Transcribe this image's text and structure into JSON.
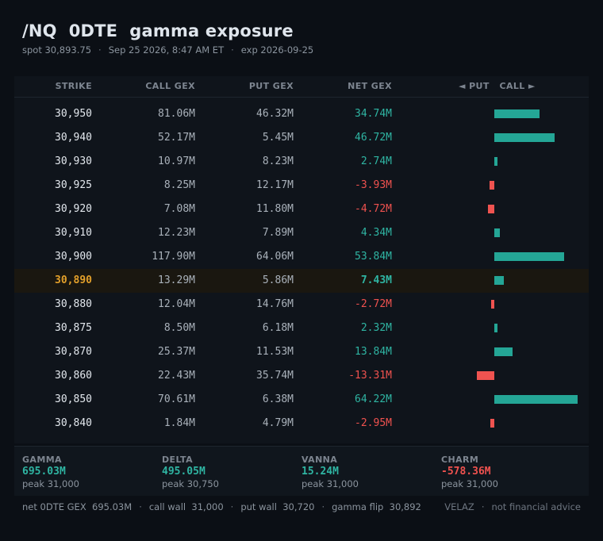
{
  "header": {
    "title": "/NQ  0DTE  gamma exposure",
    "spot": "spot 30,893.75",
    "timestamp": "Sep 25 2026, 8:47 AM ET",
    "expiry": "exp 2026-09-25",
    "separator": "·"
  },
  "table": {
    "columns": {
      "strike": "STRIKE",
      "call_gex": "CALL GEX",
      "put_gex": "PUT GEX",
      "net_gex": "NET GEX",
      "direction": "◄ PUT   CALL ►"
    },
    "bar_scale_max": 64.22,
    "highlight_strike": "30,890",
    "rows": [
      {
        "strike": "30,950",
        "call": "81.06M",
        "put": "46.32M",
        "net": "34.74M",
        "net_value": 34.74
      },
      {
        "strike": "30,940",
        "call": "52.17M",
        "put": "5.45M",
        "net": "46.72M",
        "net_value": 46.72
      },
      {
        "strike": "30,930",
        "call": "10.97M",
        "put": "8.23M",
        "net": "2.74M",
        "net_value": 2.74
      },
      {
        "strike": "30,925",
        "call": "8.25M",
        "put": "12.17M",
        "net": "-3.93M",
        "net_value": -3.93
      },
      {
        "strike": "30,920",
        "call": "7.08M",
        "put": "11.80M",
        "net": "-4.72M",
        "net_value": -4.72
      },
      {
        "strike": "30,910",
        "call": "12.23M",
        "put": "7.89M",
        "net": "4.34M",
        "net_value": 4.34
      },
      {
        "strike": "30,900",
        "call": "117.90M",
        "put": "64.06M",
        "net": "53.84M",
        "net_value": 53.84
      },
      {
        "strike": "30,890",
        "call": "13.29M",
        "put": "5.86M",
        "net": "7.43M",
        "net_value": 7.43
      },
      {
        "strike": "30,880",
        "call": "12.04M",
        "put": "14.76M",
        "net": "-2.72M",
        "net_value": -2.72
      },
      {
        "strike": "30,875",
        "call": "8.50M",
        "put": "6.18M",
        "net": "2.32M",
        "net_value": 2.32
      },
      {
        "strike": "30,870",
        "call": "25.37M",
        "put": "11.53M",
        "net": "13.84M",
        "net_value": 13.84
      },
      {
        "strike": "30,860",
        "call": "22.43M",
        "put": "35.74M",
        "net": "-13.31M",
        "net_value": -13.31
      },
      {
        "strike": "30,850",
        "call": "70.61M",
        "put": "6.38M",
        "net": "64.22M",
        "net_value": 64.22
      },
      {
        "strike": "30,840",
        "call": "1.84M",
        "put": "4.79M",
        "net": "-2.95M",
        "net_value": -2.95
      }
    ]
  },
  "stats": [
    {
      "key": "gamma",
      "label": "GAMMA",
      "value": "695.03M",
      "peak": "peak 31,000",
      "color": "#2fb5a3"
    },
    {
      "key": "delta",
      "label": "DELTA",
      "value": "495.05M",
      "peak": "peak 30,750",
      "color": "#2fb5a3"
    },
    {
      "key": "vanna",
      "label": "VANNA",
      "value": "15.24M",
      "peak": "peak 31,000",
      "color": "#2fb5a3"
    },
    {
      "key": "charm",
      "label": "CHARM",
      "value": "-578.36M",
      "peak": "peak 31,000",
      "color": "#f0524f"
    }
  ],
  "footer": {
    "net_gex": "net 0DTE GEX  695.03M",
    "call_wall": "call wall  31,000",
    "put_wall": "put wall  30,720",
    "gamma_flip": "gamma flip  30,892",
    "brand": "VELAZ",
    "disclaimer": "not financial advice",
    "separator": "·"
  },
  "colors": {
    "positive": "#2fb5a3",
    "negative": "#f0524f",
    "highlight_strike": "#e3a02a",
    "background": "#0b0f15"
  }
}
